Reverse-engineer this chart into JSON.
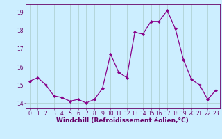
{
  "x": [
    0,
    1,
    2,
    3,
    4,
    5,
    6,
    7,
    8,
    9,
    10,
    11,
    12,
    13,
    14,
    15,
    16,
    17,
    18,
    19,
    20,
    21,
    22,
    23
  ],
  "y": [
    15.2,
    15.4,
    15.0,
    14.4,
    14.3,
    14.1,
    14.2,
    14.0,
    14.2,
    14.8,
    16.7,
    15.7,
    15.4,
    17.9,
    17.8,
    18.5,
    18.5,
    19.1,
    18.1,
    16.4,
    15.3,
    15.0,
    14.2,
    14.7
  ],
  "line_color": "#880088",
  "marker": "D",
  "marker_size": 2.0,
  "linewidth": 0.9,
  "bg_color": "#cceeff",
  "grid_color": "#aacccc",
  "xlabel": "Windchill (Refroidissement éolien,°C)",
  "xlim": [
    -0.5,
    23.5
  ],
  "ylim": [
    13.7,
    19.45
  ],
  "yticks": [
    14,
    15,
    16,
    17,
    18,
    19
  ],
  "xticks": [
    0,
    1,
    2,
    3,
    4,
    5,
    6,
    7,
    8,
    9,
    10,
    11,
    12,
    13,
    14,
    15,
    16,
    17,
    18,
    19,
    20,
    21,
    22,
    23
  ],
  "xlabel_fontsize": 6.5,
  "tick_fontsize": 5.5,
  "tick_color": "#660066"
}
